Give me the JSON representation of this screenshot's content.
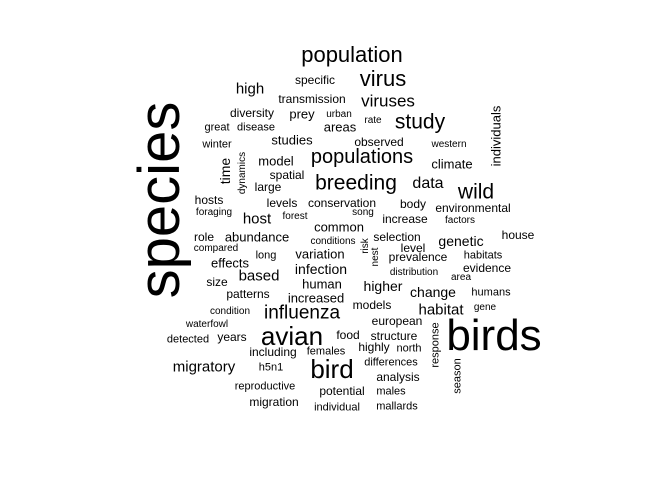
{
  "word_cloud": {
    "text_color": "#000000",
    "background": "#ffffff",
    "words": [
      {
        "text": "species",
        "weight": 100,
        "rotated": true
      },
      {
        "text": "birds",
        "weight": 80,
        "rotated": false
      },
      {
        "text": "bird",
        "weight": 40,
        "rotated": false
      },
      {
        "text": "avian",
        "weight": 40,
        "rotated": false
      },
      {
        "text": "population",
        "weight": 35,
        "rotated": false
      },
      {
        "text": "virus",
        "weight": 35,
        "rotated": false
      },
      {
        "text": "study",
        "weight": 33,
        "rotated": false
      },
      {
        "text": "breeding",
        "weight": 33,
        "rotated": false
      },
      {
        "text": "wild",
        "weight": 32,
        "rotated": false
      },
      {
        "text": "populations",
        "weight": 32,
        "rotated": false
      },
      {
        "text": "influenza",
        "weight": 30,
        "rotated": false
      },
      {
        "text": "viruses",
        "weight": 28,
        "rotated": false
      },
      {
        "text": "data",
        "weight": 26,
        "rotated": false
      },
      {
        "text": "migratory",
        "weight": 25,
        "rotated": false
      },
      {
        "text": "high",
        "weight": 24,
        "rotated": false
      },
      {
        "text": "habitat",
        "weight": 24,
        "rotated": false
      },
      {
        "text": "host",
        "weight": 23,
        "rotated": false
      },
      {
        "text": "based",
        "weight": 23,
        "rotated": false
      },
      {
        "text": "time",
        "weight": 22,
        "rotated": true
      },
      {
        "text": "infection",
        "weight": 22,
        "rotated": false
      },
      {
        "text": "genetic",
        "weight": 21,
        "rotated": false
      },
      {
        "text": "higher",
        "weight": 21,
        "rotated": false
      },
      {
        "text": "change",
        "weight": 21,
        "rotated": false
      },
      {
        "text": "areas",
        "weight": 20,
        "rotated": false
      },
      {
        "text": "prey",
        "weight": 20,
        "rotated": false
      },
      {
        "text": "variation",
        "weight": 20,
        "rotated": false
      },
      {
        "text": "common",
        "weight": 20,
        "rotated": false
      },
      {
        "text": "model",
        "weight": 20,
        "rotated": false
      },
      {
        "text": "climate",
        "weight": 20,
        "rotated": false
      },
      {
        "text": "abundance",
        "weight": 20,
        "rotated": false
      },
      {
        "text": "effects",
        "weight": 19,
        "rotated": false
      },
      {
        "text": "human",
        "weight": 19,
        "rotated": false
      },
      {
        "text": "increased",
        "weight": 19,
        "rotated": false
      },
      {
        "text": "studies",
        "weight": 19,
        "rotated": false
      },
      {
        "text": "individuals",
        "weight": 19,
        "rotated": true
      },
      {
        "text": "european",
        "weight": 18,
        "rotated": false
      },
      {
        "text": "food",
        "weight": 18,
        "rotated": false
      },
      {
        "text": "analysis",
        "weight": 18,
        "rotated": false
      },
      {
        "text": "highly",
        "weight": 18,
        "rotated": false
      },
      {
        "text": "potential",
        "weight": 18,
        "rotated": false
      },
      {
        "text": "migration",
        "weight": 18,
        "rotated": false
      },
      {
        "text": "including",
        "weight": 18,
        "rotated": false
      },
      {
        "text": "years",
        "weight": 18,
        "rotated": false
      },
      {
        "text": "house",
        "weight": 18,
        "rotated": false
      },
      {
        "text": "patterns",
        "weight": 17,
        "rotated": false
      },
      {
        "text": "evidence",
        "weight": 17,
        "rotated": false
      },
      {
        "text": "prevalence",
        "weight": 17,
        "rotated": false
      },
      {
        "text": "conservation",
        "weight": 17,
        "rotated": false
      },
      {
        "text": "environmental",
        "weight": 17,
        "rotated": false
      },
      {
        "text": "selection",
        "weight": 17,
        "rotated": false
      },
      {
        "text": "level",
        "weight": 17,
        "rotated": false
      },
      {
        "text": "levels",
        "weight": 17,
        "rotated": false
      },
      {
        "text": "large",
        "weight": 17,
        "rotated": false
      },
      {
        "text": "body",
        "weight": 17,
        "rotated": false
      },
      {
        "text": "spatial",
        "weight": 16,
        "rotated": false
      },
      {
        "text": "transmission",
        "weight": 16,
        "rotated": false
      },
      {
        "text": "specific",
        "weight": 16,
        "rotated": false
      },
      {
        "text": "diversity",
        "weight": 16,
        "rotated": false
      },
      {
        "text": "observed",
        "weight": 16,
        "rotated": false
      },
      {
        "text": "models",
        "weight": 16,
        "rotated": false
      },
      {
        "text": "hosts",
        "weight": 16,
        "rotated": false
      },
      {
        "text": "role",
        "weight": 16,
        "rotated": false
      },
      {
        "text": "structure",
        "weight": 16,
        "rotated": false
      },
      {
        "text": "size",
        "weight": 16,
        "rotated": false
      },
      {
        "text": "increase",
        "weight": 16,
        "rotated": false
      },
      {
        "text": "response",
        "weight": 15,
        "rotated": true
      },
      {
        "text": "season",
        "weight": 15,
        "rotated": true
      },
      {
        "text": "winter",
        "weight": 15,
        "rotated": false
      },
      {
        "text": "great",
        "weight": 15,
        "rotated": false
      },
      {
        "text": "disease",
        "weight": 15,
        "rotated": false
      },
      {
        "text": "males",
        "weight": 15,
        "rotated": false
      },
      {
        "text": "mallards",
        "weight": 15,
        "rotated": false
      },
      {
        "text": "females",
        "weight": 15,
        "rotated": false
      },
      {
        "text": "differences",
        "weight": 15,
        "rotated": false
      },
      {
        "text": "reproductive",
        "weight": 15,
        "rotated": false
      },
      {
        "text": "individual",
        "weight": 15,
        "rotated": false
      },
      {
        "text": "detected",
        "weight": 15,
        "rotated": false
      },
      {
        "text": "humans",
        "weight": 15,
        "rotated": false
      },
      {
        "text": "habitats",
        "weight": 15,
        "rotated": false
      },
      {
        "text": "long",
        "weight": 15,
        "rotated": false
      },
      {
        "text": "h5n1",
        "weight": 15,
        "rotated": false
      },
      {
        "text": "north",
        "weight": 15,
        "rotated": false
      },
      {
        "text": "western",
        "weight": 14,
        "rotated": false
      },
      {
        "text": "urban",
        "weight": 14,
        "rotated": false
      },
      {
        "text": "rate",
        "weight": 14,
        "rotated": false
      },
      {
        "text": "forest",
        "weight": 14,
        "rotated": false
      },
      {
        "text": "song",
        "weight": 14,
        "rotated": false
      },
      {
        "text": "factors",
        "weight": 14,
        "rotated": false
      },
      {
        "text": "area",
        "weight": 14,
        "rotated": false
      },
      {
        "text": "gene",
        "weight": 14,
        "rotated": false
      },
      {
        "text": "foraging",
        "weight": 14,
        "rotated": false
      },
      {
        "text": "compared",
        "weight": 14,
        "rotated": false
      },
      {
        "text": "conditions",
        "weight": 14,
        "rotated": false
      },
      {
        "text": "condition",
        "weight": 14,
        "rotated": false
      },
      {
        "text": "waterfowl",
        "weight": 14,
        "rotated": false
      },
      {
        "text": "distribution",
        "weight": 14,
        "rotated": false
      },
      {
        "text": "dynamics",
        "weight": 14,
        "rotated": true
      },
      {
        "text": "risk",
        "weight": 14,
        "rotated": true
      },
      {
        "text": "nest",
        "weight": 14,
        "rotated": true
      }
    ]
  }
}
